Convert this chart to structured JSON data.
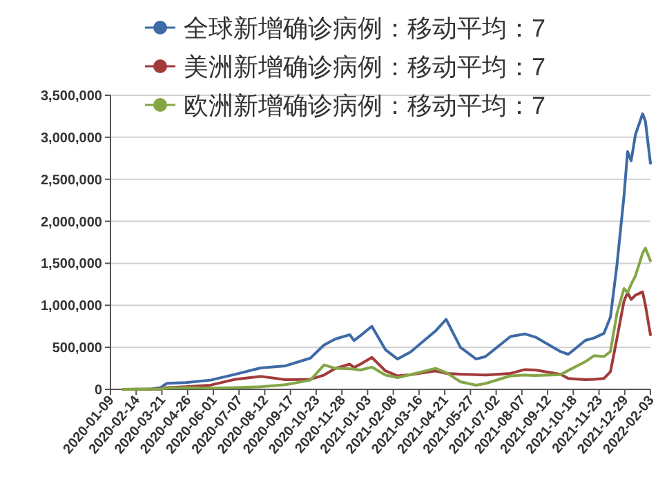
{
  "chart_data": {
    "type": "line",
    "x": [
      "2020-01-27",
      "2020-03-06",
      "2020-03-19",
      "2020-03-28",
      "2020-04-23",
      "2020-05-28",
      "2020-07-02",
      "2020-08-06",
      "2020-09-10",
      "2020-10-15",
      "2020-11-03",
      "2020-11-19",
      "2020-12-09",
      "2020-12-15",
      "2020-12-24",
      "2021-01-09",
      "2021-01-28",
      "2021-02-14",
      "2021-03-04",
      "2021-04-08",
      "2021-04-23",
      "2021-05-13",
      "2021-06-04",
      "2021-06-17",
      "2021-07-22",
      "2021-08-11",
      "2021-08-26",
      "2021-09-30",
      "2021-10-11",
      "2021-11-04",
      "2021-11-16",
      "2021-11-30",
      "2021-12-09",
      "2021-12-18",
      "2021-12-28",
      "2022-01-02",
      "2022-01-07",
      "2022-01-13",
      "2022-01-23",
      "2022-01-27",
      "2022-02-03"
    ],
    "series": [
      {
        "name": "全球新增确诊病例：移动平均：7",
        "color": "#3e6aa5",
        "values": [
          0,
          5000,
          20000,
          72000,
          80000,
          110000,
          180000,
          255000,
          280000,
          372000,
          528000,
          600000,
          650000,
          580000,
          640000,
          750000,
          472000,
          361000,
          444000,
          694000,
          833000,
          500000,
          361000,
          390000,
          628000,
          660000,
          622000,
          450000,
          417000,
          583000,
          611000,
          667000,
          861000,
          1470000,
          2300000,
          2830000,
          2720000,
          3030000,
          3280000,
          3190000,
          2690000
        ]
      },
      {
        "name": "美洲新增确诊病例：移动平均：7",
        "color": "#a23a3a",
        "values": [
          0,
          2000,
          3000,
          20000,
          30000,
          50000,
          120000,
          155000,
          115000,
          120000,
          170000,
          250000,
          300000,
          260000,
          300000,
          380000,
          220000,
          160000,
          175000,
          220000,
          190000,
          180000,
          175000,
          170000,
          190000,
          235000,
          230000,
          180000,
          130000,
          115000,
          120000,
          130000,
          210000,
          600000,
          1050000,
          1150000,
          1070000,
          1120000,
          1160000,
          1000000,
          650000
        ]
      },
      {
        "name": "欧洲新增确诊病例：移动平均：7",
        "color": "#84a646",
        "values": [
          0,
          2000,
          5000,
          15000,
          20000,
          15000,
          20000,
          30000,
          55000,
          110000,
          290000,
          250000,
          245000,
          240000,
          230000,
          265000,
          170000,
          140000,
          175000,
          250000,
          200000,
          90000,
          50000,
          70000,
          160000,
          170000,
          165000,
          175000,
          225000,
          330000,
          400000,
          390000,
          450000,
          900000,
          1200000,
          1150000,
          1250000,
          1350000,
          1620000,
          1680000,
          1530000
        ]
      }
    ],
    "xlim": [
      "2020-01-09",
      "2022-02-03"
    ],
    "xticks": [
      "2020-01-09",
      "2020-02-14",
      "2020-03-21",
      "2020-04-26",
      "2020-06-01",
      "2020-07-07",
      "2020-08-12",
      "2020-09-17",
      "2020-10-23",
      "2020-11-28",
      "2021-01-03",
      "2021-02-08",
      "2021-03-16",
      "2021-04-21",
      "2021-05-27",
      "2021-07-02",
      "2021-08-07",
      "2021-09-12",
      "2021-10-18",
      "2021-11-23",
      "2021-12-29",
      "2022-02-03"
    ],
    "ylim": [
      0,
      3500000
    ],
    "yticks": [
      0,
      {
        "value": 500000,
        "label": "500,000"
      },
      {
        "value": 1000000,
        "label": "1,000,000"
      },
      {
        "value": 1500000,
        "label": "1,500,000"
      },
      {
        "value": 2000000,
        "label": "2,000,000"
      },
      {
        "value": 2500000,
        "label": "2,500,000"
      },
      {
        "value": 3000000,
        "label": "3,000,000"
      },
      {
        "value": 3500000,
        "label": "3,500,000"
      }
    ],
    "grid": "y",
    "legend": "top",
    "line_style": "solid"
  }
}
